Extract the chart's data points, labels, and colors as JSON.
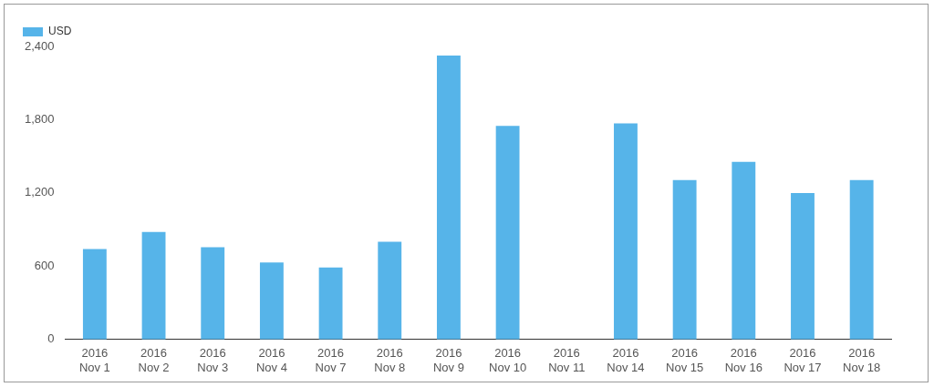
{
  "chart_data": {
    "type": "bar",
    "categories": [
      "2016\nNov 1",
      "2016\nNov 2",
      "2016\nNov 3",
      "2016\nNov 4",
      "2016\nNov 7",
      "2016\nNov 8",
      "2016\nNov 9",
      "2016\nNov 10",
      "2016\nNov 11",
      "2016\nNov 14",
      "2016\nNov 15",
      "2016\nNov 16",
      "2016\nNov 17",
      "2016\nNov 18"
    ],
    "series": [
      {
        "name": "USD",
        "color": "#56b4e9",
        "values": [
          740,
          880,
          755,
          630,
          590,
          800,
          2325,
          1750,
          null,
          1770,
          1305,
          1455,
          1200,
          1305
        ]
      }
    ],
    "ylim": [
      0,
      2400
    ],
    "yticks": [
      0,
      600,
      {
        "value": 1200,
        "label": "1,200"
      },
      {
        "value": 1800,
        "label": "1,800"
      },
      {
        "value": 2400,
        "label": "2,400"
      }
    ],
    "grid": false,
    "legend": "top left"
  }
}
